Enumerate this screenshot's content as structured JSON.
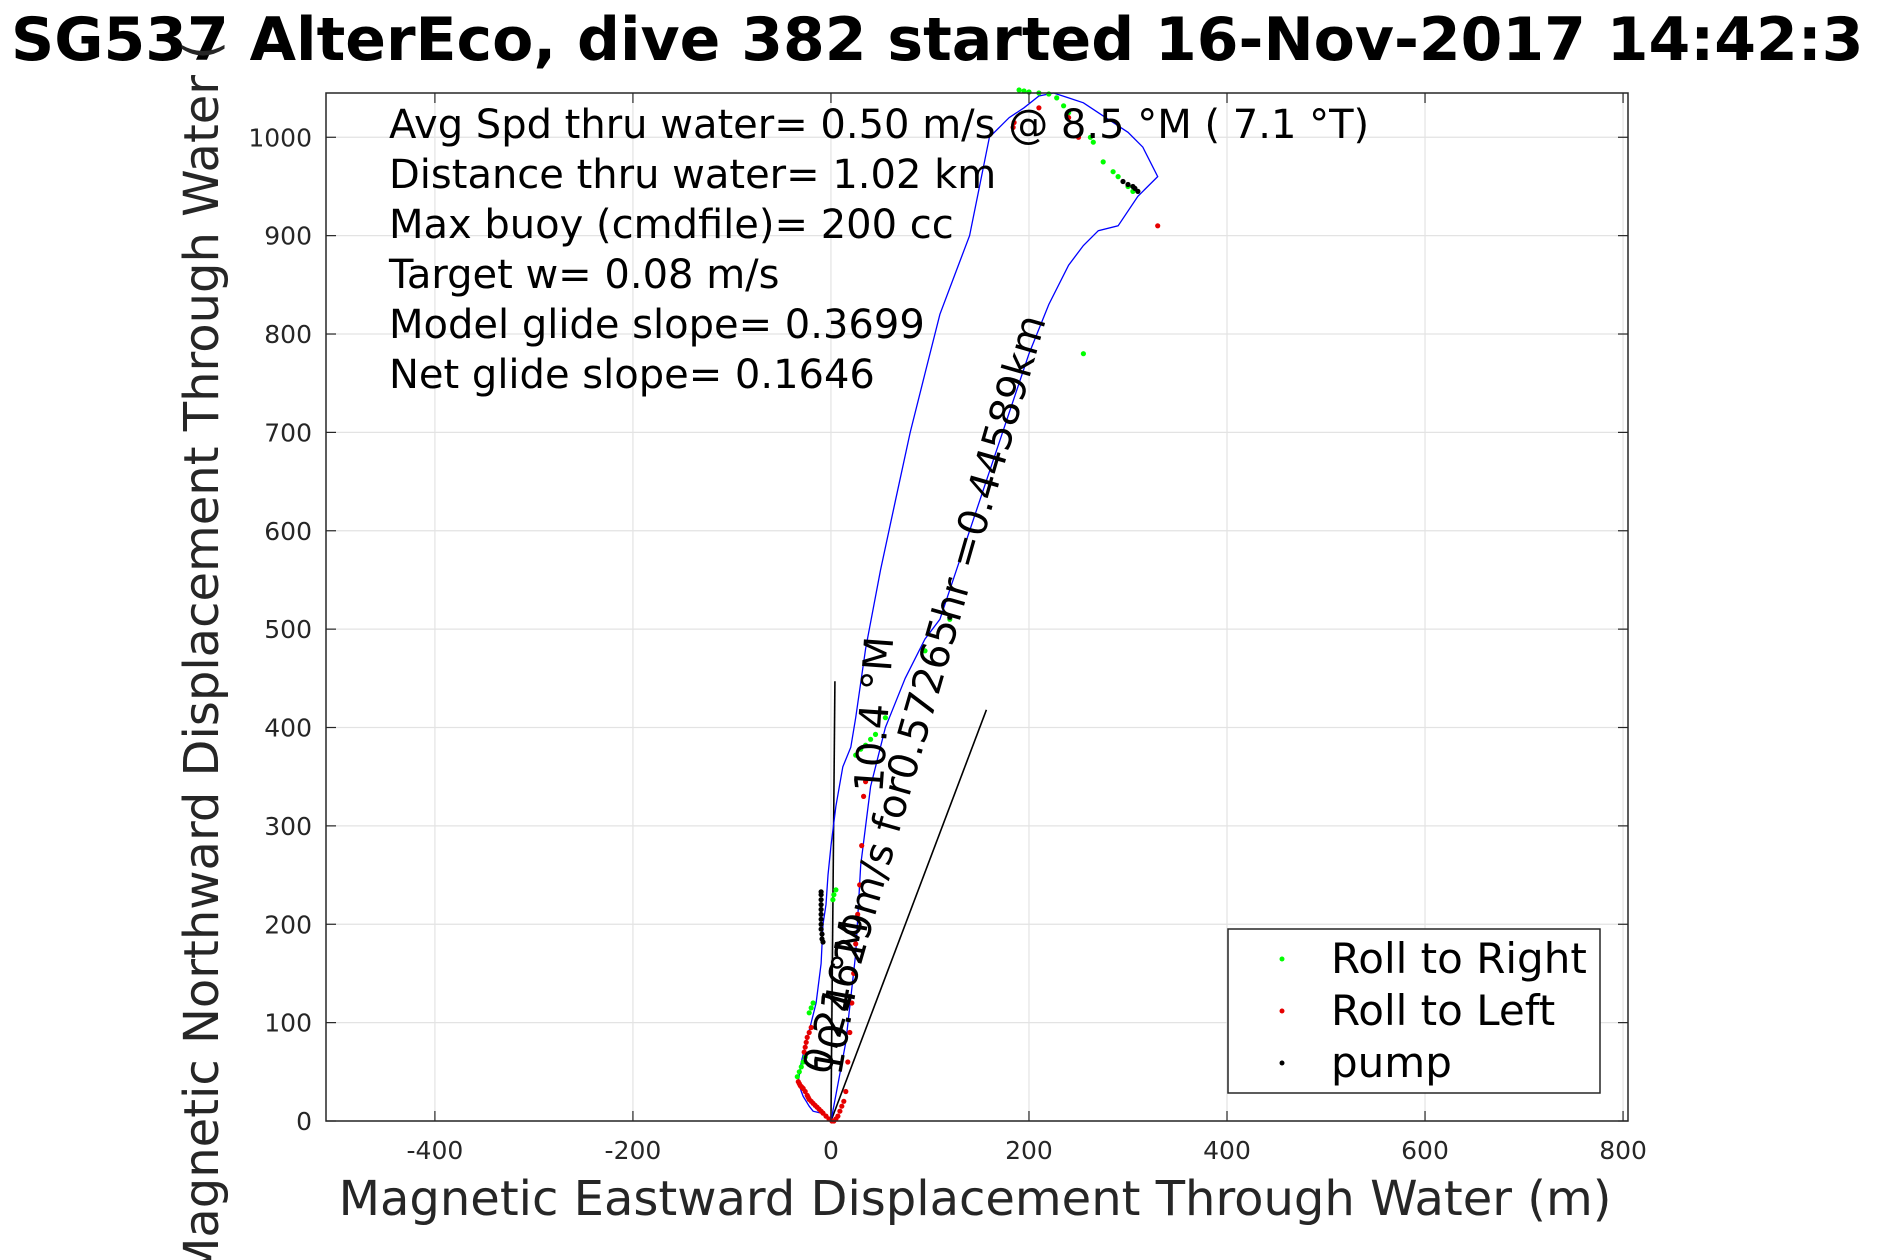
{
  "chart_data": {
    "type": "scatter",
    "title": "SG537 AlterEco, dive 382 started 16-Nov-2017 14:42:3",
    "xlabel": "Magnetic Eastward Displacement Through Water (m)",
    "ylabel": "Magnetic Northward Displacement Through Water (",
    "xlim": [
      -510,
      805
    ],
    "ylim": [
      0,
      1045
    ],
    "xticks": [
      -400,
      -200,
      0,
      200,
      400,
      600,
      800
    ],
    "yticks": [
      0,
      100,
      200,
      300,
      400,
      500,
      600,
      700,
      800,
      900,
      1000
    ],
    "xtick_labels": [
      "-400",
      "-200",
      "0",
      "200",
      "400",
      "600",
      "800"
    ],
    "ytick_labels": [
      "0",
      "100",
      "200",
      "300",
      "400",
      "500",
      "600",
      "700",
      "800",
      "900",
      "1000"
    ],
    "grid": true,
    "legend_position": "bottom-right",
    "stats_lines": [
      "Avg Spd thru water=  0.50 m/s @   8.5 °M (  7.1 °T)",
      "Distance thru water=  1.02 km",
      "Max buoy (cmdfile)= 200 cc",
      "Target w= 0.08 m/s",
      "Model glide slope= 0.3699",
      "Net glide slope= 0.1646"
    ],
    "annotations": [
      {
        "text": "0.21629m/s for0.57265hr =0.44589km",
        "x": -2,
        "y": 45,
        "angle": -74
      },
      {
        "text": "10.4 °M",
        "x": 10,
        "y": 45,
        "angle": -80
      },
      {
        "text": "10.4 °M",
        "x": 52,
        "y": 333,
        "angle": -86
      }
    ],
    "reference_lines": [
      {
        "name": "heading-line-1",
        "x": [
          0,
          4
        ],
        "y": [
          0,
          447
        ]
      },
      {
        "name": "heading-line-2",
        "x": [
          0,
          157
        ],
        "y": [
          0,
          418
        ]
      }
    ],
    "track": {
      "name": "glider-track",
      "color": "#0000ff",
      "x": [
        0,
        15,
        25,
        30,
        40,
        55,
        75,
        95,
        110,
        120,
        140,
        160,
        180,
        200,
        220,
        240,
        255,
        270,
        290,
        310,
        330,
        315,
        300,
        285,
        270,
        255,
        240,
        225,
        210,
        195,
        180,
        170,
        160,
        150,
        140,
        125,
        110,
        95,
        80,
        65,
        50,
        35,
        25,
        20,
        12,
        5,
        0,
        -3,
        -5,
        -8,
        -10,
        -15,
        -20,
        -25,
        -30,
        -33,
        -30,
        -28,
        -25,
        -22,
        -18,
        -10,
        -5,
        0
      ],
      "y": [
        0,
        80,
        170,
        260,
        340,
        400,
        450,
        490,
        510,
        540,
        600,
        660,
        720,
        780,
        830,
        870,
        890,
        905,
        910,
        940,
        960,
        990,
        1005,
        1015,
        1025,
        1035,
        1040,
        1045,
        1042,
        1030,
        1020,
        1010,
        1000,
        950,
        900,
        860,
        820,
        760,
        700,
        630,
        560,
        480,
        410,
        380,
        360,
        320,
        280,
        250,
        220,
        200,
        160,
        120,
        100,
        80,
        60,
        40,
        30,
        25,
        20,
        15,
        10,
        8,
        5,
        0
      ]
    },
    "series": [
      {
        "name": "Roll to Right",
        "color": "#00ff00",
        "x": [
          -34,
          -32,
          -30,
          -28,
          -26,
          -22,
          -20,
          -18,
          2,
          3,
          5,
          25,
          30,
          35,
          40,
          45,
          55,
          95,
          120,
          190,
          195,
          200,
          210,
          220,
          228,
          235,
          240,
          262,
          265,
          275,
          285,
          290,
          300,
          305,
          255
        ],
        "y": [
          45,
          50,
          55,
          60,
          65,
          110,
          115,
          120,
          225,
          230,
          235,
          372,
          378,
          382,
          388,
          393,
          410,
          478,
          510,
          1048,
          1047,
          1046,
          1045,
          1044,
          1040,
          1032,
          1025,
          1000,
          995,
          975,
          965,
          960,
          950,
          945,
          780
        ]
      },
      {
        "name": "Roll to Left",
        "color": "#e60000",
        "x": [
          -33,
          -32,
          -31,
          -30,
          -29,
          -28,
          -26,
          -24,
          -23,
          -22,
          -20,
          -18,
          -16,
          -14,
          -12,
          -10,
          -8,
          -5,
          -2,
          1,
          3,
          5,
          7,
          9,
          11,
          13,
          15,
          17,
          19,
          21,
          23,
          25,
          27,
          29,
          31,
          33,
          35,
          -20,
          -22,
          -24,
          -25,
          -26,
          -27,
          210,
          240,
          250,
          330,
          184,
          185
        ],
        "y": [
          40,
          38,
          36,
          35,
          34,
          33,
          30,
          26,
          24,
          22,
          20,
          18,
          16,
          14,
          12,
          10,
          8,
          5,
          2,
          0,
          0,
          2,
          5,
          10,
          15,
          20,
          30,
          60,
          90,
          120,
          150,
          180,
          210,
          240,
          280,
          330,
          345,
          95,
          90,
          85,
          80,
          75,
          70,
          1030,
          1020,
          1000,
          910,
          1010,
          1015
        ]
      },
      {
        "name": "pump",
        "color": "#000000",
        "x": [
          -10,
          -10,
          -10,
          -10,
          -10,
          -10,
          -10,
          -10,
          -10,
          -9,
          -9,
          -8,
          120,
          295,
          300,
          305,
          307,
          310
        ],
        "y": [
          195,
          200,
          205,
          210,
          215,
          220,
          225,
          230,
          233,
          190,
          185,
          182,
          512,
          955,
          952,
          950,
          948,
          945
        ]
      }
    ]
  }
}
